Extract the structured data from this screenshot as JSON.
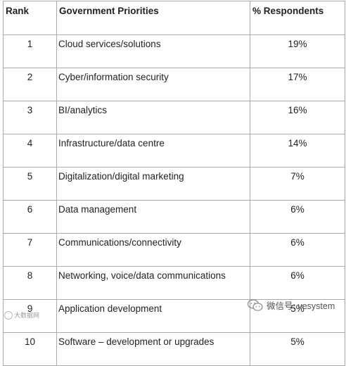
{
  "table": {
    "headers": {
      "rank": "Rank",
      "priorities": "Government Priorities",
      "respondents": "% Respondents"
    },
    "rows": [
      {
        "rank": "1",
        "priority": "Cloud services/solutions",
        "respondents": "19%"
      },
      {
        "rank": "2",
        "priority": "Cyber/information security",
        "respondents": "17%"
      },
      {
        "rank": "3",
        "priority": "BI/analytics",
        "respondents": "16%"
      },
      {
        "rank": "4",
        "priority": "Infrastructure/data centre",
        "respondents": "14%"
      },
      {
        "rank": "5",
        "priority": "Digitalization/digital marketing",
        "respondents": "7%"
      },
      {
        "rank": "6",
        "priority": "Data management",
        "respondents": "6%"
      },
      {
        "rank": "7",
        "priority": "Communications/connectivity",
        "respondents": "6%"
      },
      {
        "rank": "8",
        "priority": "Networking, voice/data communications",
        "respondents": "6%"
      },
      {
        "rank": "9",
        "priority": "Application development",
        "respondents": "5%"
      },
      {
        "rank": "10",
        "priority": "Software – development or upgrades",
        "respondents": "5%"
      }
    ]
  },
  "watermark": {
    "right_text": "微信号: vesystem",
    "left_text": "大数据网",
    "icon": "wechat-icon"
  },
  "colors": {
    "border": "#aaaaaa",
    "text": "#222222"
  }
}
